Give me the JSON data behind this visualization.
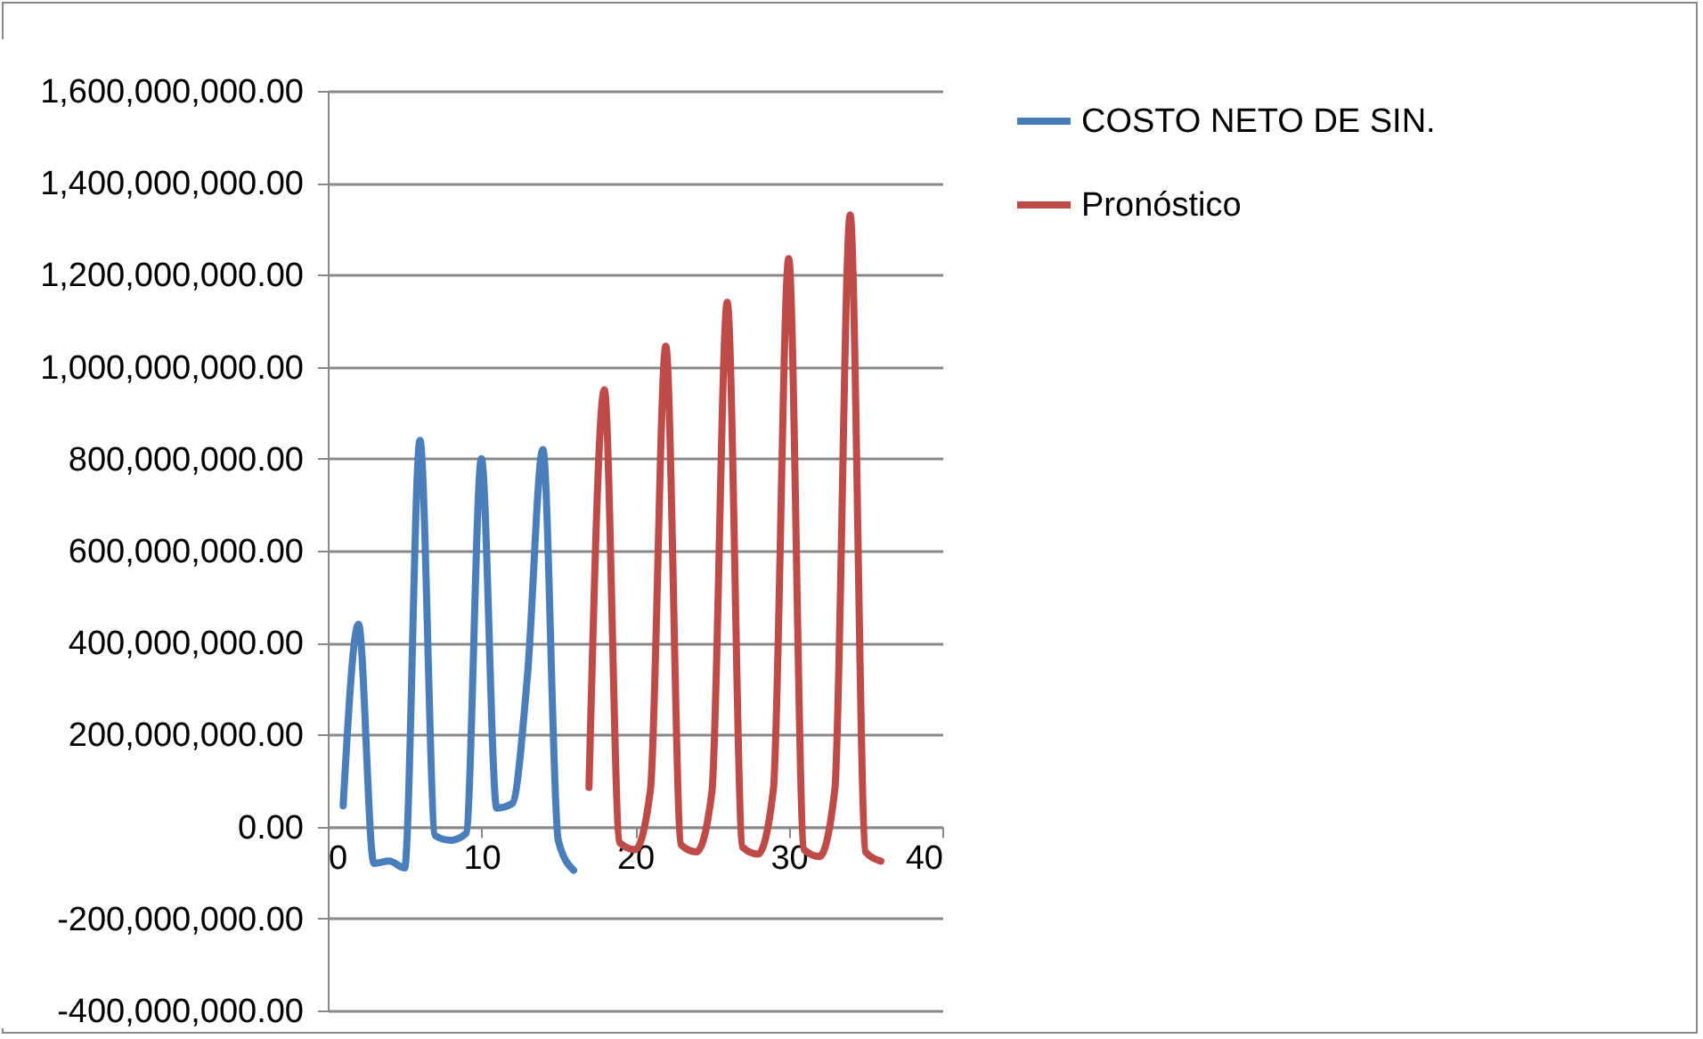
{
  "chart_data": {
    "type": "line",
    "x": [
      1,
      2,
      3,
      4,
      5,
      6,
      7,
      8,
      9,
      10,
      11,
      12,
      13,
      14,
      15,
      16
    ],
    "series": [
      {
        "name": "COSTO NETO DE SIN.",
        "color": "#4a7ebb",
        "values": [
          45000000,
          440000000,
          -80000000,
          -75000000,
          -90000000,
          840000000,
          -20000000,
          -30000000,
          -15000000,
          800000000,
          40000000,
          50000000,
          330000000,
          820000000,
          -30000000,
          -95000000
        ]
      },
      {
        "name": "Pronóstico",
        "color": "#be4b48",
        "x": [
          17,
          18,
          19,
          20,
          21,
          22,
          23,
          24,
          25,
          26,
          27,
          28,
          29,
          30,
          31,
          32,
          33,
          34,
          35,
          36
        ],
        "values": [
          85000000,
          950000000,
          -35000000,
          -50000000,
          80000000,
          1045000000,
          -40000000,
          -55000000,
          75000000,
          1140000000,
          -45000000,
          -60000000,
          80000000,
          1235000000,
          -50000000,
          -65000000,
          80000000,
          1330000000,
          -55000000,
          -75000000
        ]
      }
    ],
    "xlim": [
      0,
      40
    ],
    "xticks": [
      0,
      10,
      20,
      30,
      40
    ],
    "ylim": [
      -400000000,
      1600000000
    ],
    "yticks": [
      {
        "value": -400000000,
        "label": "-400,000,000.00"
      },
      {
        "value": -200000000,
        "label": "-200,000,000.00"
      },
      {
        "value": 0,
        "label": "0.00"
      },
      {
        "value": 200000000,
        "label": "200,000,000.00"
      },
      {
        "value": 400000000,
        "label": "400,000,000.00"
      },
      {
        "value": 600000000,
        "label": "600,000,000.00"
      },
      {
        "value": 800000000,
        "label": "800,000,000.00"
      },
      {
        "value": 1000000000,
        "label": "1,000,000,000.00"
      },
      {
        "value": 1200000000,
        "label": "1,200,000,000.00"
      },
      {
        "value": 1400000000,
        "label": "1,400,000,000.00"
      },
      {
        "value": 1600000000,
        "label": "1,600,000,000.00"
      }
    ],
    "grid": "y",
    "legend": "right",
    "marker": "none",
    "line_style": "solid"
  }
}
